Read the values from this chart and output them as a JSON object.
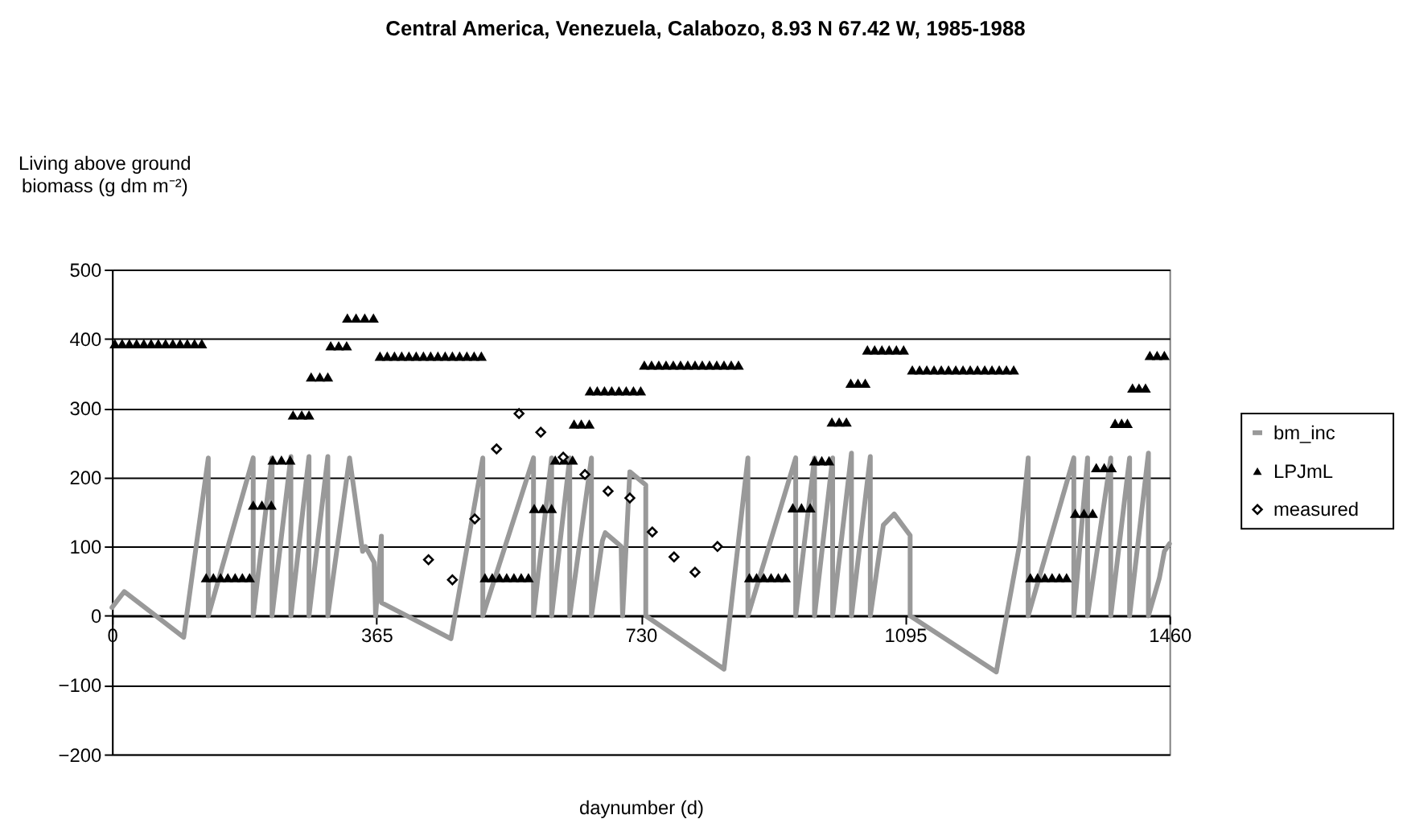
{
  "chart_data": {
    "type": "line",
    "title": "Central America, Venezuela, Calabozo, 8.93 N 67.42 W, 1985-1988",
    "xlabel": "daynumber (d)",
    "ylabel": "Living above ground biomass (g dm m⁻²)",
    "xlim": [
      0,
      1460
    ],
    "xticks": [
      0,
      365,
      730,
      1095,
      1460
    ],
    "ylim": [
      -200,
      500
    ],
    "yticks": [
      -200,
      -100,
      0,
      100,
      200,
      300,
      400,
      500
    ],
    "grid": "y",
    "legend": "right",
    "series": [
      {
        "name": "bm_inc",
        "color": "#999999",
        "x": [
          0,
          17,
          99,
          133,
          133,
          195,
          195,
          221,
          221,
          247,
          247,
          272,
          272,
          298,
          298,
          328,
          346,
          350,
          362,
          364,
          372,
          372,
          468,
          512,
          512,
          582,
          582,
          607,
          607,
          632,
          632,
          662,
          662,
          677,
          681,
          703,
          705,
          715,
          737,
          737,
          845,
          878,
          878,
          944,
          944,
          970,
          970,
          995,
          995,
          1021,
          1021,
          1047,
          1047,
          1065,
          1080,
          1102,
          1102,
          1221,
          1254,
          1265,
          1265,
          1328,
          1328,
          1347,
          1347,
          1379,
          1379,
          1405,
          1405,
          1431,
          1431,
          1446,
          1453,
          1460
        ],
        "values": [
          12,
          35,
          -31,
          228,
          0,
          228,
          0,
          228,
          0,
          230,
          0,
          230,
          0,
          230,
          0,
          228,
          93,
          100,
          77,
          0,
          115,
          19,
          -33,
          228,
          0,
          228,
          0,
          228,
          0,
          228,
          0,
          228,
          0,
          108,
          120,
          100,
          0,
          208,
          189,
          0,
          -77,
          228,
          0,
          228,
          0,
          228,
          0,
          228,
          0,
          235,
          0,
          230,
          0,
          131,
          147,
          116,
          0,
          -81,
          108,
          228,
          0,
          228,
          0,
          228,
          0,
          228,
          0,
          228,
          0,
          235,
          0,
          54,
          93,
          104
        ]
      },
      {
        "name": "LPJmL",
        "type": "scatter",
        "marker": "triangle",
        "color": "#000000",
        "x": [
          4,
          14,
          24,
          34,
          44,
          54,
          64,
          74,
          84,
          94,
          104,
          114,
          124,
          130,
          140,
          150,
          160,
          170,
          180,
          190,
          195,
          207,
          220,
          222,
          234,
          246,
          250,
          262,
          272,
          275,
          287,
          298,
          302,
          313,
          324,
          325,
          337,
          349,
          361,
          370,
          380,
          390,
          400,
          410,
          420,
          430,
          440,
          450,
          460,
          470,
          480,
          490,
          500,
          510,
          515,
          525,
          535,
          545,
          555,
          565,
          575,
          583,
          595,
          607,
          612,
          624,
          636,
          638,
          648,
          659,
          660,
          670,
          680,
          690,
          700,
          710,
          720,
          730,
          735,
          745,
          755,
          765,
          775,
          785,
          795,
          805,
          815,
          825,
          835,
          845,
          855,
          865,
          880,
          890,
          900,
          910,
          920,
          930,
          940,
          952,
          964,
          970,
          980,
          990,
          994,
          1004,
          1014,
          1020,
          1030,
          1040,
          1043,
          1053,
          1063,
          1073,
          1083,
          1093,
          1105,
          1115,
          1125,
          1135,
          1145,
          1155,
          1165,
          1175,
          1185,
          1195,
          1205,
          1215,
          1225,
          1235,
          1245,
          1268,
          1278,
          1288,
          1298,
          1308,
          1318,
          1330,
          1342,
          1354,
          1359,
          1370,
          1380,
          1385,
          1394,
          1402,
          1409,
          1418,
          1427,
          1433,
          1443,
          1453
        ],
        "values": [
          393,
          393,
          393,
          393,
          393,
          393,
          393,
          393,
          393,
          393,
          393,
          393,
          393,
          55,
          55,
          55,
          55,
          55,
          55,
          55,
          160,
          160,
          160,
          225,
          225,
          225,
          290,
          290,
          290,
          345,
          345,
          345,
          390,
          390,
          390,
          430,
          430,
          430,
          430,
          375,
          375,
          375,
          375,
          375,
          375,
          375,
          375,
          375,
          375,
          375,
          375,
          375,
          375,
          375,
          55,
          55,
          55,
          55,
          55,
          55,
          55,
          155,
          155,
          155,
          225,
          225,
          225,
          277,
          277,
          277,
          325,
          325,
          325,
          325,
          325,
          325,
          325,
          325,
          362,
          362,
          362,
          362,
          362,
          362,
          362,
          362,
          362,
          362,
          362,
          362,
          362,
          362,
          55,
          55,
          55,
          55,
          55,
          55,
          156,
          156,
          156,
          224,
          224,
          224,
          280,
          280,
          280,
          336,
          336,
          336,
          384,
          384,
          384,
          384,
          384,
          384,
          355,
          355,
          355,
          355,
          355,
          355,
          355,
          355,
          355,
          355,
          355,
          355,
          355,
          355,
          355,
          55,
          55,
          55,
          55,
          55,
          55,
          148,
          148,
          148,
          214,
          214,
          214,
          278,
          278,
          278,
          329,
          329,
          329,
          376,
          376,
          376
        ]
      },
      {
        "name": "measured",
        "type": "scatter",
        "marker": "diamond",
        "color": "#000000",
        "x": [
          437,
          470,
          501,
          531,
          562,
          592,
          623,
          653,
          685,
          715,
          746,
          776,
          805,
          836
        ],
        "values": [
          81,
          52,
          140,
          241,
          292,
          265,
          229,
          204,
          180,
          170,
          121,
          85,
          63,
          100
        ]
      }
    ]
  }
}
